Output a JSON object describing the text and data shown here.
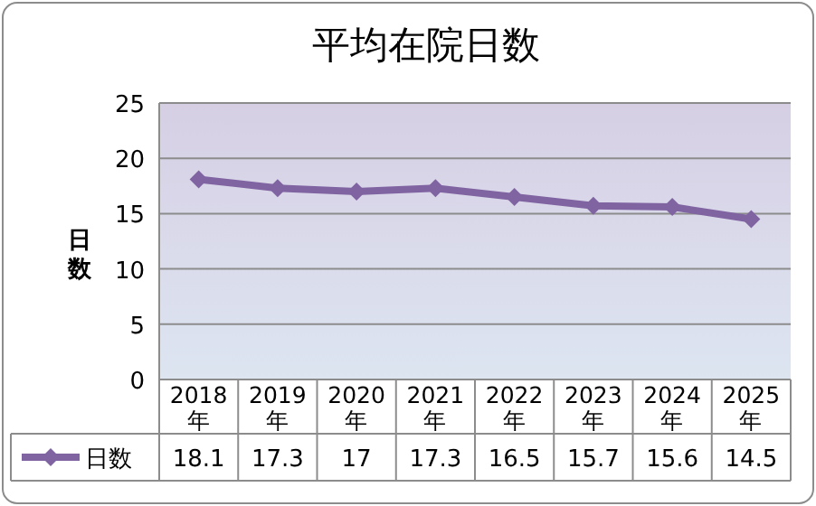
{
  "chart_data": {
    "type": "line",
    "title": "平均在院日数",
    "ylabel": "日数",
    "categories": [
      "2018年",
      "2019年",
      "2020年",
      "2021年",
      "2022年",
      "2023年",
      "2024年",
      "2025年"
    ],
    "series": [
      {
        "name": "日数",
        "color": "#8064a2",
        "values": [
          18.1,
          17.3,
          17,
          17.3,
          16.5,
          15.7,
          15.6,
          14.5
        ]
      }
    ],
    "ylim": [
      0,
      25
    ],
    "yticks": [
      0,
      5,
      10,
      15,
      20,
      25
    ],
    "grid": "y",
    "legend": "bottom",
    "marker": "diamond",
    "data_labels": true
  }
}
